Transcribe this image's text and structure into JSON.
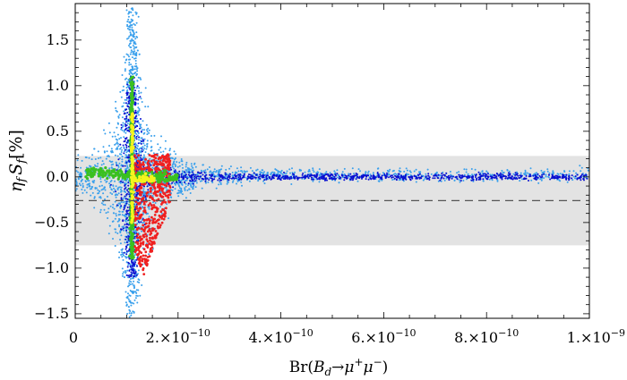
{
  "chart_data": {
    "type": "scatter",
    "xlabel": {
      "pre": "Br(",
      "sym": "B",
      "sub": "d",
      "arrow": "→μ",
      "sup1": "+",
      "mid": "μ",
      "sup2": "−",
      "post": ")"
    },
    "ylabel": {
      "eta": "η",
      "sub1": "f",
      "s": "S",
      "sub2": "f",
      "unit": "[%]"
    },
    "xlim": [
      0,
      1e-09
    ],
    "ylim": [
      -1.55,
      1.9
    ],
    "x_ticks": [
      {
        "value": 0,
        "label": "0"
      },
      {
        "value": 2e-10,
        "label": "2.×10",
        "exp": "−10"
      },
      {
        "value": 4e-10,
        "label": "4.×10",
        "exp": "−10"
      },
      {
        "value": 6e-10,
        "label": "6.×10",
        "exp": "−10"
      },
      {
        "value": 8e-10,
        "label": "8.×10",
        "exp": "−10"
      },
      {
        "value": 1e-09,
        "label": "1.×10",
        "exp": "−9"
      }
    ],
    "y_ticks": [
      {
        "value": 1.5,
        "label": "1.5"
      },
      {
        "value": 1.0,
        "label": "1.0"
      },
      {
        "value": 0.5,
        "label": "0.5"
      },
      {
        "value": 0.0,
        "label": "0.0"
      },
      {
        "value": -0.5,
        "label": "−0.5"
      },
      {
        "value": -1.0,
        "label": "−1.0"
      },
      {
        "value": -1.5,
        "label": "−1.5"
      }
    ],
    "band": {
      "y_low": -0.75,
      "y_high": 0.23,
      "color": "#e3e3e3"
    },
    "dashed_line": {
      "y": -0.26,
      "color": "#555555"
    },
    "grid": false,
    "series": [
      {
        "color": "#3aa0ec",
        "x_center": 1.1e-10
      },
      {
        "color": "#0a10d0",
        "x_center": 1.1e-10
      },
      {
        "color": "#ef2020",
        "x_center": 1.15e-10
      },
      {
        "color": "#3ac020",
        "x_center": 1.1e-10
      },
      {
        "color": "#f4f41e",
        "x_center": 1.1e-10
      }
    ]
  }
}
